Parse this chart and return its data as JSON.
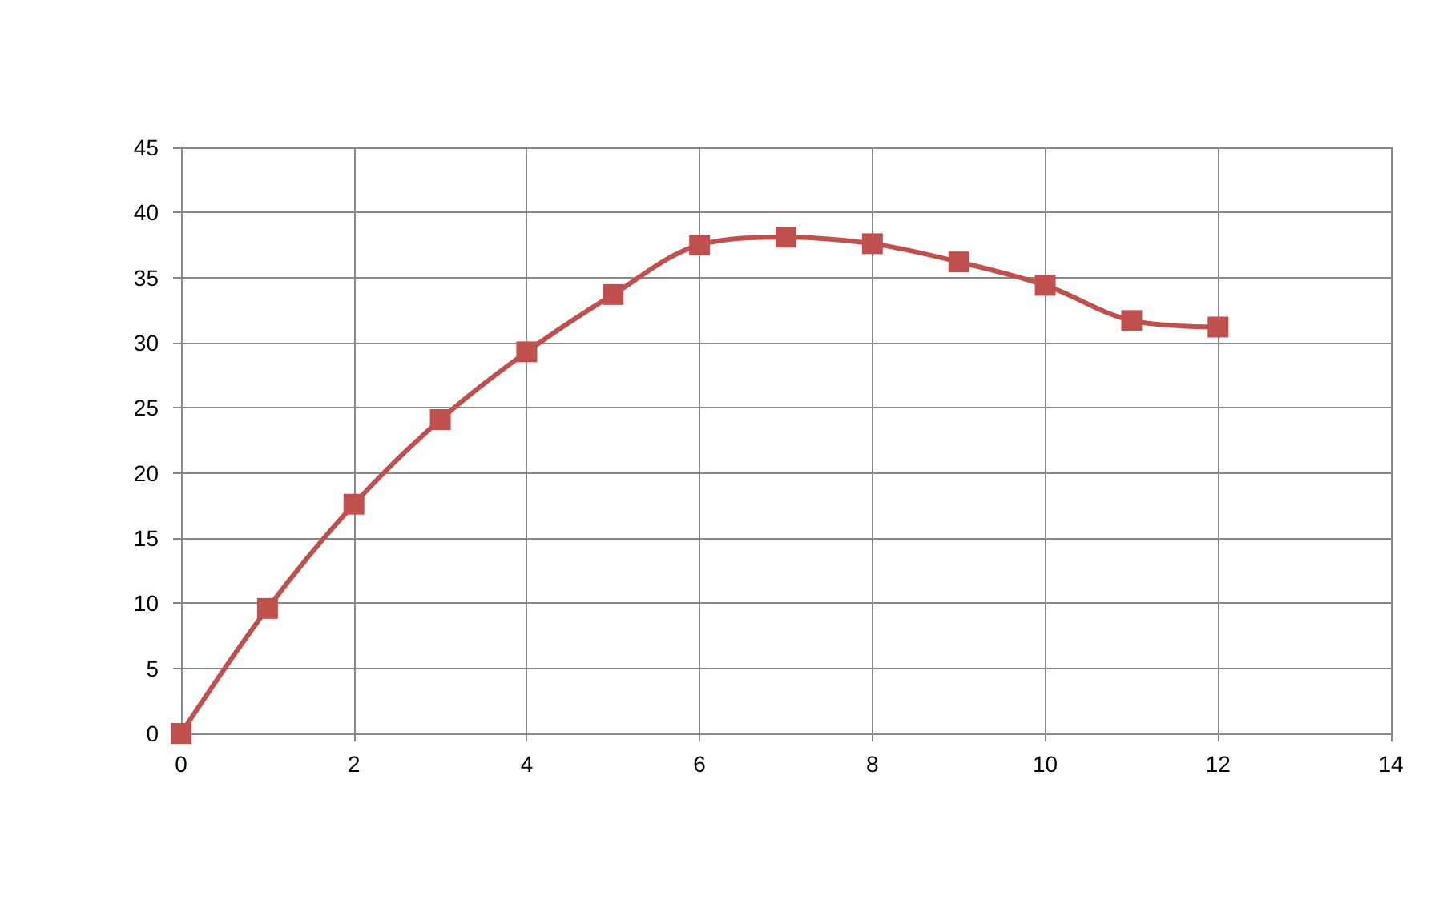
{
  "chart_data": {
    "type": "line",
    "x": [
      0,
      1,
      2,
      3,
      4,
      5,
      6,
      7,
      8,
      9,
      10,
      11,
      12
    ],
    "series": [
      {
        "color": "#c0504d",
        "values": [
          0,
          9.6,
          17.6,
          24.1,
          29.3,
          33.7,
          37.5,
          38.1,
          37.6,
          36.2,
          34.4,
          31.7,
          31.2
        ]
      }
    ],
    "xlim": [
      0,
      14
    ],
    "xticks": [
      0,
      2,
      4,
      6,
      8,
      10,
      12,
      14
    ],
    "ylim": [
      0,
      45
    ],
    "yticks": [
      0,
      5,
      10,
      15,
      20,
      25,
      30,
      35,
      40,
      45
    ],
    "grid": true,
    "marker": "square",
    "line_style": "solid"
  }
}
